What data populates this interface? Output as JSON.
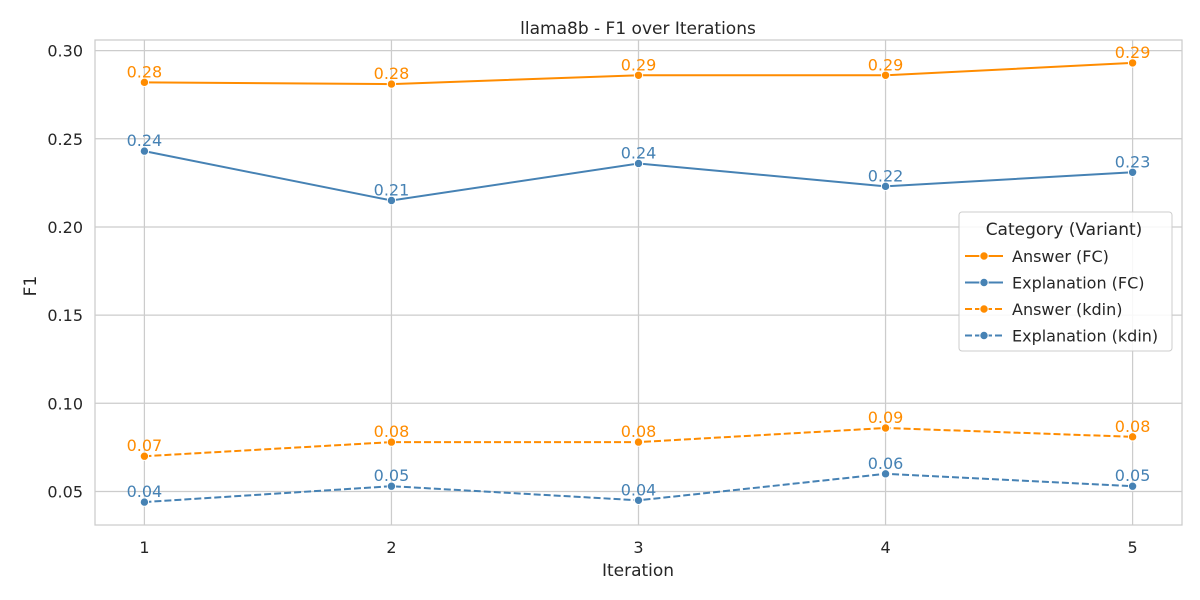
{
  "chart_data": {
    "type": "line",
    "title": "llama8b - F1 over Iterations",
    "xlabel": "Iteration",
    "ylabel": "F1",
    "x": [
      1,
      2,
      3,
      4,
      5
    ],
    "xticks": [
      "1",
      "2",
      "3",
      "4",
      "5"
    ],
    "yticks": [
      "0.05",
      "0.10",
      "0.15",
      "0.20",
      "0.25",
      "0.30"
    ],
    "ytick_values": [
      0.05,
      0.1,
      0.15,
      0.2,
      0.25,
      0.3
    ],
    "xlim": [
      0.8,
      5.2
    ],
    "ylim": [
      0.031,
      0.306
    ],
    "grid": true,
    "legend": {
      "title": "Category (Variant)",
      "placement": "right"
    },
    "series": [
      {
        "name": "Answer (FC)",
        "color": "#ff8c00",
        "dashed": false,
        "values": [
          0.282,
          0.281,
          0.286,
          0.286,
          0.293
        ],
        "labels": [
          "0.28",
          "0.28",
          "0.29",
          "0.29",
          "0.29"
        ]
      },
      {
        "name": "Explanation (FC)",
        "color": "#4682b4",
        "dashed": false,
        "values": [
          0.243,
          0.215,
          0.236,
          0.223,
          0.231
        ],
        "labels": [
          "0.24",
          "0.21",
          "0.24",
          "0.22",
          "0.23"
        ]
      },
      {
        "name": "Answer (kdin)",
        "color": "#ff8c00",
        "dashed": true,
        "values": [
          0.07,
          0.078,
          0.078,
          0.086,
          0.081
        ],
        "labels": [
          "0.07",
          "0.08",
          "0.08",
          "0.09",
          "0.08"
        ]
      },
      {
        "name": "Explanation (kdin)",
        "color": "#4682b4",
        "dashed": true,
        "values": [
          0.044,
          0.053,
          0.045,
          0.06,
          0.053
        ],
        "labels": [
          "0.04",
          "0.05",
          "0.04",
          "0.06",
          "0.05"
        ]
      }
    ]
  }
}
